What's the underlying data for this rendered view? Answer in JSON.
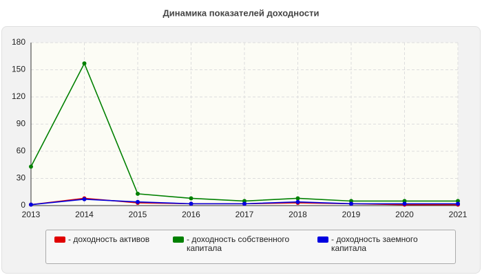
{
  "chart_data": {
    "type": "line",
    "title": "Динамика показателей доходности",
    "x": [
      2013,
      2014,
      2015,
      2016,
      2017,
      2018,
      2019,
      2020,
      2021
    ],
    "xlim": [
      2013,
      2021
    ],
    "xticks": [
      2013,
      2014,
      2015,
      2016,
      2017,
      2018,
      2019,
      2020,
      2021
    ],
    "ylim": [
      0,
      180
    ],
    "yticks": [
      0,
      30,
      60,
      90,
      120,
      150,
      180
    ],
    "grid": true,
    "series": [
      {
        "name": "- доходность активов",
        "color": "#e00000",
        "values": [
          1,
          8,
          3,
          2,
          2,
          3,
          2,
          1,
          1
        ]
      },
      {
        "name": "- доходность собственного капитала",
        "color": "#008000",
        "values": [
          43,
          157,
          13,
          8,
          5,
          8,
          5,
          5,
          5
        ]
      },
      {
        "name": "- доходность заемного капитала",
        "color": "#0000e0",
        "values": [
          1,
          7,
          4,
          2,
          2,
          4,
          2,
          2,
          2
        ]
      }
    ]
  }
}
